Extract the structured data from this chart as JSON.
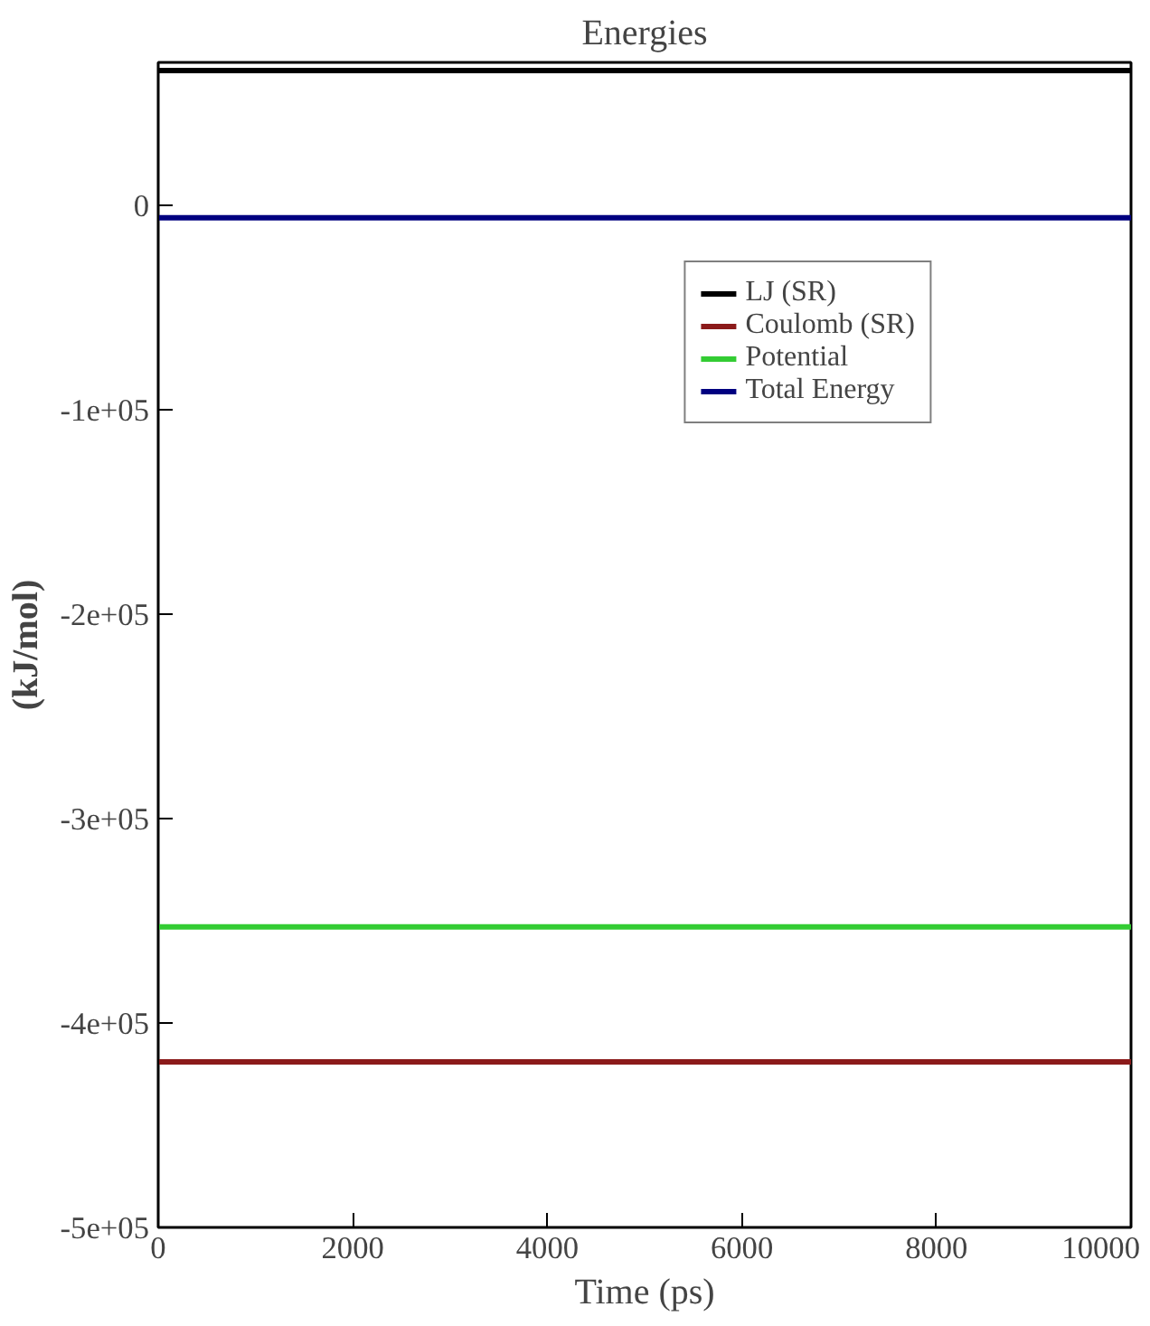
{
  "chart_data": {
    "type": "line",
    "title": "Energies",
    "xlabel": "Time (ps)",
    "ylabel": "(kJ/mol)",
    "x": [
      0,
      10000
    ],
    "series": [
      {
        "name": "LJ (SR)",
        "color": "#000000",
        "values": [
          66000,
          66000
        ]
      },
      {
        "name": "Coulomb (SR)",
        "color": "#8b1a1a",
        "values": [
          -419000,
          -419000
        ]
      },
      {
        "name": "Potential",
        "color": "#33cc33",
        "values": [
          -353000,
          -353000
        ]
      },
      {
        "name": "Total Energy",
        "color": "#000080",
        "values": [
          -6000,
          -6000
        ]
      }
    ],
    "xlim": [
      0,
      10000
    ],
    "ylim": [
      -500000,
      70000
    ],
    "xticks": [
      0,
      2000,
      4000,
      6000,
      8000,
      10000
    ],
    "yticks": [
      {
        "value": 0,
        "label": "0"
      },
      {
        "value": -100000,
        "label": "-1e+05"
      },
      {
        "value": -200000,
        "label": "-2e+05"
      },
      {
        "value": -300000,
        "label": "-3e+05"
      },
      {
        "value": -400000,
        "label": "-4e+05"
      },
      {
        "value": -500000,
        "label": "-5e+05"
      }
    ],
    "grid": false,
    "legend": "top right",
    "marker": "none",
    "line_style": "solid"
  }
}
